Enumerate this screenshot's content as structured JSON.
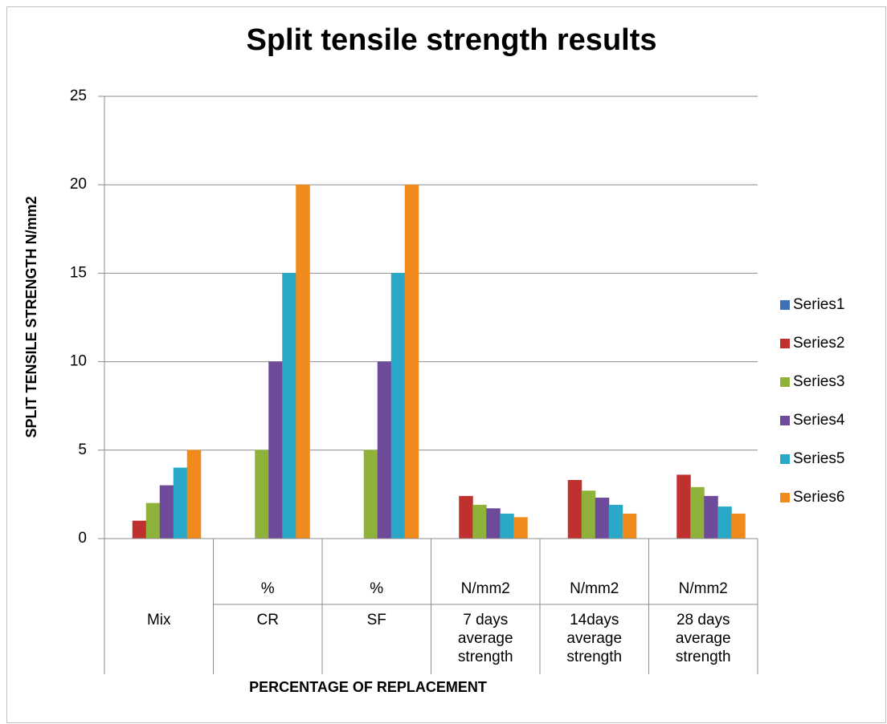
{
  "chart_data": {
    "type": "bar",
    "title": "Split tensile strength results",
    "y_label": "SPLIT TENSILE STRENGTH N/mm2",
    "x_label": "PERCENTAGE OF REPLACEMENT",
    "categories": [
      [
        "Mix"
      ],
      [
        "CR"
      ],
      [
        "SF"
      ],
      [
        "7 days",
        "average",
        "strength"
      ],
      [
        "14days",
        "average",
        "strength"
      ],
      [
        "28 days",
        "average",
        "strength"
      ]
    ],
    "category_units": [
      null,
      "%",
      "%",
      "N/mm2",
      "N/mm2",
      "N/mm2"
    ],
    "series": [
      {
        "name": "Series1",
        "color": "#3f6fb5",
        "values": [
          0,
          0,
          0,
          0,
          0,
          0
        ]
      },
      {
        "name": "Series2",
        "color": "#c0302e",
        "values": [
          1,
          0,
          0,
          2.4,
          3.3,
          3.6
        ]
      },
      {
        "name": "Series3",
        "color": "#8fb33a",
        "values": [
          2,
          5,
          5,
          1.9,
          2.7,
          2.9
        ]
      },
      {
        "name": "Series4",
        "color": "#6e4a9b",
        "values": [
          3,
          10,
          10,
          1.7,
          2.3,
          2.4
        ]
      },
      {
        "name": "Series5",
        "color": "#2aa8c8",
        "values": [
          4,
          15,
          15,
          1.4,
          1.9,
          1.8
        ]
      },
      {
        "name": "Series6",
        "color": "#f08a1c",
        "values": [
          5,
          20,
          20,
          1.2,
          1.4,
          1.4
        ]
      }
    ],
    "ylim": [
      0,
      25
    ],
    "yticks": [
      0,
      5,
      10,
      15,
      20,
      25
    ],
    "grid": true,
    "legend": "right"
  }
}
